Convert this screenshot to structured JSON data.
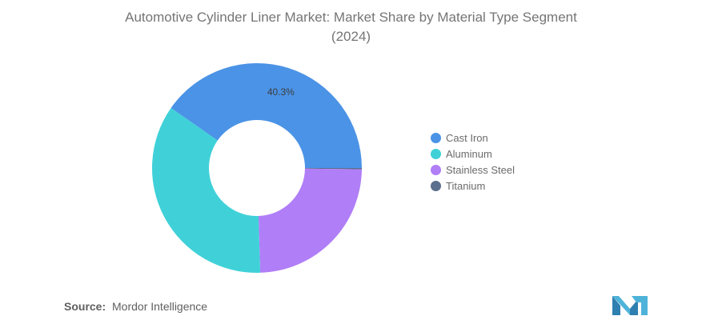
{
  "chart_data": {
    "type": "pie",
    "title_line1": "Automotive Cylinder Liner Market: Market Share by Material Type Segment",
    "title_line2": "(2024)",
    "categories": [
      "Cast Iron",
      "Aluminum",
      "Stainless Steel",
      "Titanium"
    ],
    "values": [
      40.3,
      35.2,
      24.3,
      0.2
    ],
    "colors": [
      "#4b93e6",
      "#40d1d8",
      "#b07ef7",
      "#5b6f8e"
    ],
    "data_labels": [
      {
        "category": "Cast Iron",
        "text": "40.3%"
      }
    ],
    "donut": true,
    "legend_position": "right"
  },
  "source": {
    "label": "Source:",
    "text": "Mordor Intelligence"
  },
  "logo": {
    "icon": "mordor-intelligence-logo-icon",
    "color": "#3a8fbf"
  }
}
